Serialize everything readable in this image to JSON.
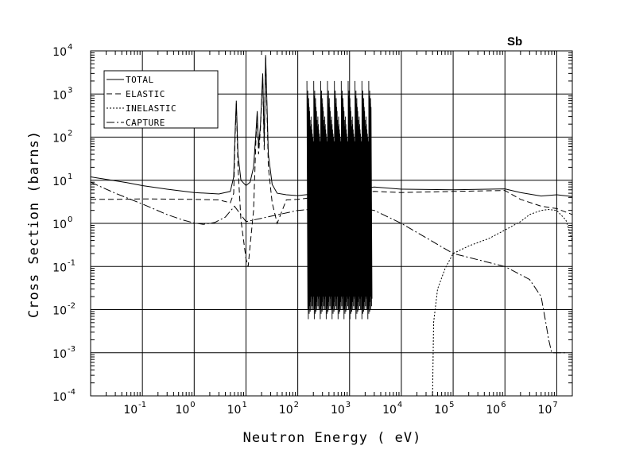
{
  "chart_data": {
    "type": "line",
    "title": "Sb",
    "xlabel": "Neutron Energy ( eV)",
    "ylabel": "Cross Section (barns)",
    "x_scale": "log",
    "y_scale": "log",
    "xlim": [
      0.01,
      20000000
    ],
    "ylim": [
      0.0001,
      10000
    ],
    "grid": true,
    "legend_position": "top-left",
    "x_ticks": [
      {
        "base": "10",
        "exp": "-1",
        "value": 0.1
      },
      {
        "base": "10",
        "exp": "0",
        "value": 1
      },
      {
        "base": "10",
        "exp": "1",
        "value": 10
      },
      {
        "base": "10",
        "exp": "2",
        "value": 100
      },
      {
        "base": "10",
        "exp": "3",
        "value": 1000
      },
      {
        "base": "10",
        "exp": "4",
        "value": 10000
      },
      {
        "base": "10",
        "exp": "5",
        "value": 100000
      },
      {
        "base": "10",
        "exp": "6",
        "value": 1000000
      },
      {
        "base": "10",
        "exp": "7",
        "value": 10000000
      }
    ],
    "y_ticks": [
      {
        "base": "10",
        "exp": "-4",
        "value": 0.0001
      },
      {
        "base": "10",
        "exp": "-3",
        "value": 0.001
      },
      {
        "base": "10",
        "exp": "-2",
        "value": 0.01
      },
      {
        "base": "10",
        "exp": "-1",
        "value": 0.1
      },
      {
        "base": "10",
        "exp": "0",
        "value": 1
      },
      {
        "base": "10",
        "exp": "1",
        "value": 10
      },
      {
        "base": "10",
        "exp": "2",
        "value": 100
      },
      {
        "base": "10",
        "exp": "3",
        "value": 1000
      },
      {
        "base": "10",
        "exp": "4",
        "value": 10000
      }
    ],
    "series": [
      {
        "name": "TOTAL",
        "dash": "",
        "x": [
          0.01,
          0.02,
          0.05,
          0.1,
          0.3,
          1,
          3,
          5,
          5.8,
          6.2,
          6.5,
          7,
          8,
          10,
          12,
          14,
          15.5,
          16.5,
          17.5,
          19,
          21,
          22.5,
          24,
          27,
          32,
          40,
          60,
          100,
          200,
          3000,
          10000,
          100000,
          1000000,
          2000000,
          5000000,
          10000000,
          20000000
        ],
        "y": [
          12,
          10.5,
          8.8,
          7.5,
          6.2,
          5.2,
          4.8,
          5.5,
          12,
          150,
          700,
          40,
          10,
          7.5,
          9,
          20,
          120,
          400,
          60,
          180,
          3000,
          80,
          8000,
          40,
          8,
          5,
          4.6,
          4.4,
          4.8,
          7,
          6.2,
          6,
          6.3,
          5.2,
          4.3,
          4.6,
          4.2
        ]
      },
      {
        "name": "ELASTIC",
        "dash": "7,4",
        "x": [
          0.01,
          0.03,
          0.1,
          1,
          3,
          5,
          5.8,
          6.2,
          6.5,
          7,
          8,
          10,
          11,
          12,
          14,
          15.5,
          16.5,
          17.5,
          19,
          21,
          22.5,
          24,
          27,
          32,
          40,
          60,
          100,
          200,
          3000,
          10000,
          100000,
          1000000,
          2000000,
          5000000,
          10000000,
          20000000
        ],
        "y": [
          3.6,
          3.6,
          3.7,
          3.6,
          3.5,
          3,
          5,
          120,
          600,
          20,
          1.2,
          0.15,
          0.1,
          0.3,
          2,
          80,
          350,
          40,
          150,
          2500,
          50,
          7000,
          20,
          3,
          1,
          3.5,
          3.6,
          4,
          5.5,
          5.2,
          5.5,
          5.8,
          3.6,
          2.5,
          2.2,
          1.6
        ]
      },
      {
        "name": "INELASTIC",
        "dash": "2,2",
        "x": [
          40000,
          42000,
          50000,
          70000,
          100000,
          200000,
          500000,
          1000000,
          2000000,
          3000000,
          5000000,
          7000000,
          10000000,
          15000000,
          20000000
        ],
        "y": [
          0.0001,
          0.005,
          0.03,
          0.09,
          0.2,
          0.3,
          0.45,
          0.7,
          1.1,
          1.6,
          2,
          2.1,
          2,
          1.2,
          0.4
        ]
      },
      {
        "name": "CAPTURE",
        "dash": "10,3,2,3",
        "x": [
          0.01,
          0.03,
          0.1,
          0.3,
          0.6,
          1,
          1.5,
          2.5,
          4,
          6,
          10,
          100,
          1000,
          3000,
          10000,
          100000,
          1000000,
          3000000,
          5000000,
          6000000,
          7000000,
          8000000,
          10000000,
          15000000
        ],
        "y": [
          9,
          5,
          2.8,
          1.6,
          1.2,
          1.02,
          0.95,
          1.05,
          1.4,
          2.5,
          1.1,
          2,
          2.5,
          2,
          1,
          0.2,
          0.1,
          0.05,
          0.02,
          0.006,
          0.002,
          0.001,
          0.001,
          0.001
        ]
      }
    ],
    "resonance_band": {
      "x_range": [
        150,
        2600
      ],
      "peak_upper": [
        2000,
        900,
        1200,
        600,
        800,
        500,
        400,
        250,
        180,
        300,
        200,
        150,
        120,
        100,
        80
      ],
      "trough_lower": [
        0.01,
        0.006,
        0.01,
        0.008,
        0.012,
        0.009,
        0.015,
        0.01,
        0.02,
        0.012,
        0.018,
        0.01,
        0.02
      ]
    }
  }
}
